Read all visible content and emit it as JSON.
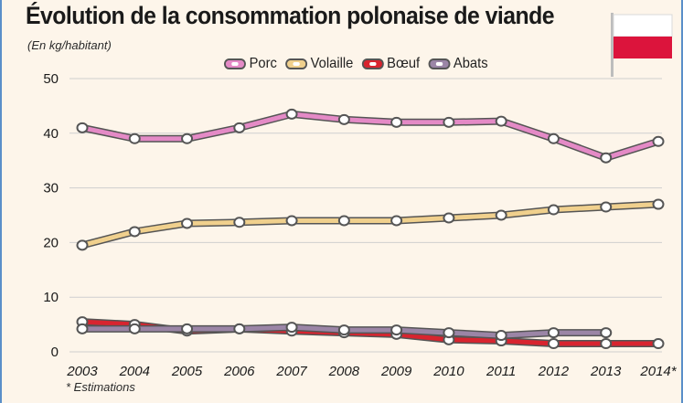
{
  "title": "Évolution de la consommation polonaise de viande",
  "subtitle": "(En kg/habitant)",
  "footnote": "* Estimations",
  "colors": {
    "Porc": "#e48ac6",
    "Volaille": "#f0d08d",
    "Bœuf": "#d8242f",
    "Abats": "#9b85a6",
    "outline": "#555555",
    "grid": "#cfcfcf",
    "flag_white": "#ffffff",
    "flag_red": "#dc143c"
  },
  "chart_data": {
    "type": "line",
    "title": "Évolution de la consommation polonaise de viande",
    "ylabel": "(En kg/habitant)",
    "xlabel": "",
    "x": [
      "2003",
      "2004",
      "2005",
      "2006",
      "2007",
      "2008",
      "2009",
      "2010",
      "2011",
      "2012",
      "2013",
      "2014*"
    ],
    "yticks": [
      0,
      10,
      20,
      30,
      40,
      50
    ],
    "ylim": [
      0,
      50
    ],
    "grid": true,
    "legend_position": "top",
    "series": [
      {
        "name": "Porc",
        "values": [
          41,
          39,
          39,
          41,
          43.5,
          42.5,
          42,
          42,
          42.2,
          39,
          35.5,
          38.5
        ]
      },
      {
        "name": "Volaille",
        "values": [
          19.5,
          22,
          23.5,
          23.7,
          24,
          24,
          24,
          24.5,
          25,
          26,
          26.5,
          27
        ]
      },
      {
        "name": "Bœuf",
        "values": [
          5.5,
          5,
          3.8,
          4.2,
          3.8,
          3.5,
          3.2,
          2.2,
          2,
          1.5,
          1.5,
          1.5
        ]
      },
      {
        "name": "Abats",
        "values": [
          4.2,
          4.2,
          4.2,
          4.2,
          4.5,
          4,
          4,
          3.5,
          3,
          3.5,
          3.5,
          null
        ]
      }
    ]
  }
}
